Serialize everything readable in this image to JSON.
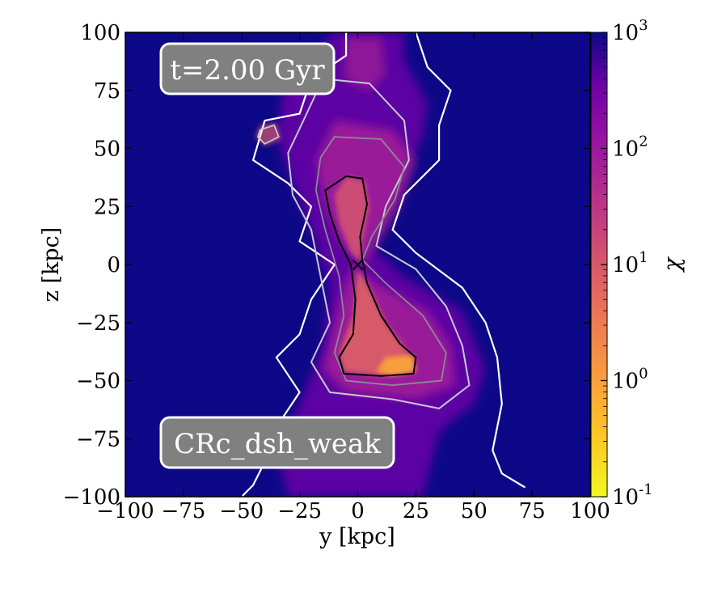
{
  "chart_data": {
    "type": "heatmap",
    "title": "",
    "xlabel": "y [kpc]",
    "ylabel": "z [kpc]",
    "xlim": [
      -100,
      100
    ],
    "ylim": [
      -100,
      100
    ],
    "x_ticks": [
      -100,
      -75,
      -50,
      -25,
      0,
      25,
      50,
      75,
      100
    ],
    "y_ticks": [
      -100,
      -75,
      -50,
      -25,
      0,
      25,
      50,
      75,
      100
    ],
    "x_tick_labels": [
      "−100",
      "−75",
      "−50",
      "−25",
      "0",
      "25",
      "50",
      "75",
      "100"
    ],
    "y_tick_labels": [
      "−100",
      "−75",
      "−50",
      "−25",
      "0",
      "25",
      "50",
      "75",
      "100"
    ],
    "annotations": {
      "time": "t=2.00 Gyr",
      "run": "CRc_dsh_weak"
    },
    "center_marker": {
      "x": 0,
      "y": 0,
      "symbol": "×"
    },
    "colorbar": {
      "label": "χ",
      "scale": "log",
      "range": [
        0.1,
        1000
      ],
      "ticks": [
        {
          "value": 1000,
          "base": "10",
          "exp": "3"
        },
        {
          "value": 100,
          "base": "10",
          "exp": "2"
        },
        {
          "value": 10,
          "base": "10",
          "exp": "1"
        },
        {
          "value": 1,
          "base": "10",
          "exp": "0"
        },
        {
          "value": 0.1,
          "base": "10",
          "exp": "-1"
        }
      ],
      "colormap": "plasma_r"
    },
    "background_value": 1000,
    "gas_structure": {
      "description_hint": "bipolar outflow",
      "north_lobe": {
        "z_range": [
          0,
          100
        ],
        "chi_range": [
          1,
          300
        ]
      },
      "south_lobe": {
        "z_range": [
          -100,
          0
        ],
        "chi_range": [
          0.5,
          300
        ]
      }
    }
  },
  "colors": {
    "background": "#0d0887",
    "badge_fill": "#808080",
    "badge_stroke": "#ffffff",
    "contour_outer": "#ffffff",
    "contour_mid": "#c7c7d0",
    "contour_inner": "#8a8a96",
    "contour_core": "#000000"
  }
}
